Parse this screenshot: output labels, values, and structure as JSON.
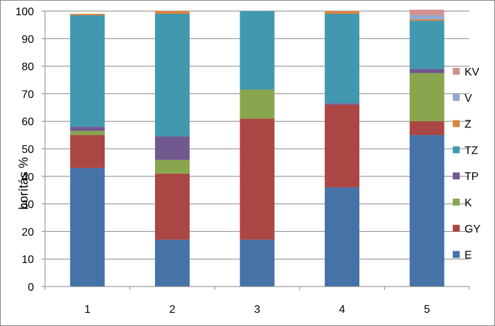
{
  "chart_data": {
    "type": "bar",
    "stacked": true,
    "categories": [
      "1",
      "2",
      "3",
      "4",
      "5"
    ],
    "ylabel": "borítás %",
    "xlabel": "",
    "ylim": [
      0,
      100
    ],
    "yticks": [
      "0",
      "10",
      "20",
      "30",
      "40",
      "50",
      "60",
      "70",
      "80",
      "90",
      "100"
    ],
    "grid": true,
    "legend_position": "right",
    "series": [
      {
        "name": "E",
        "color": "#4572A7",
        "values": [
          43,
          17,
          17,
          36,
          55
        ]
      },
      {
        "name": "GY",
        "color": "#AA4643",
        "values": [
          12,
          24,
          44,
          30,
          5
        ]
      },
      {
        "name": "K",
        "color": "#89A54E",
        "values": [
          1.5,
          5,
          10.5,
          0,
          17.5
        ]
      },
      {
        "name": "TP",
        "color": "#71588F",
        "values": [
          1.5,
          8.5,
          0,
          0.5,
          1.5
        ]
      },
      {
        "name": "TZ",
        "color": "#4198AF",
        "values": [
          40.5,
          44.5,
          28.5,
          32.5,
          17.5
        ]
      },
      {
        "name": "Z",
        "color": "#DB843D",
        "values": [
          0.5,
          1,
          0,
          1,
          0.5
        ]
      },
      {
        "name": "V",
        "color": "#93A9CF",
        "values": [
          0,
          0,
          0,
          0,
          1.5
        ]
      },
      {
        "name": "KV",
        "color": "#D19392",
        "values": [
          0,
          0,
          0,
          0,
          2
        ]
      }
    ]
  }
}
